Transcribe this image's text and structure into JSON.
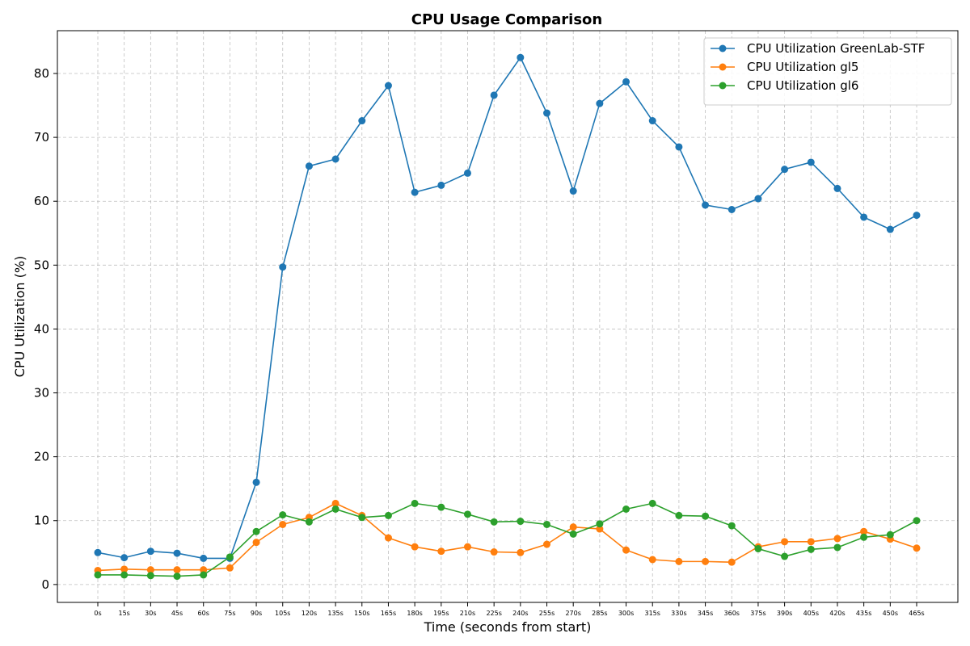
{
  "chart_data": {
    "type": "line",
    "title": "CPU Usage Comparison",
    "xlabel": "Time (seconds from start)",
    "ylabel": "CPU Utilization (%)",
    "categories": [
      "0s",
      "15s",
      "30s",
      "45s",
      "60s",
      "75s",
      "90s",
      "105s",
      "120s",
      "135s",
      "150s",
      "165s",
      "180s",
      "195s",
      "210s",
      "225s",
      "240s",
      "255s",
      "270s",
      "285s",
      "300s",
      "315s",
      "330s",
      "345s",
      "360s",
      "375s",
      "390s",
      "405s",
      "420s",
      "435s",
      "450s",
      "465s"
    ],
    "ylim": [
      -2.8,
      86.7
    ],
    "yticks": [
      0,
      10,
      20,
      30,
      40,
      50,
      60,
      70,
      80
    ],
    "grid": true,
    "legend_position": "top-right",
    "series": [
      {
        "name": "CPU Utilization GreenLab-STF",
        "color": "#1f77b4",
        "values": [
          5.0,
          4.2,
          5.2,
          4.9,
          4.1,
          4.1,
          16.0,
          49.7,
          65.5,
          66.6,
          72.6,
          78.1,
          61.4,
          62.5,
          64.4,
          76.6,
          82.5,
          73.8,
          61.6,
          75.3,
          78.7,
          72.6,
          68.5,
          59.4,
          58.7,
          60.4,
          65.0,
          66.1,
          62.0,
          57.5,
          55.6,
          57.8
        ]
      },
      {
        "name": "CPU Utilization gl5",
        "color": "#ff7f0e",
        "values": [
          2.2,
          2.4,
          2.3,
          2.3,
          2.3,
          2.6,
          6.6,
          9.4,
          10.5,
          12.7,
          10.8,
          7.3,
          5.9,
          5.2,
          5.9,
          5.1,
          5.0,
          6.3,
          9.0,
          8.7,
          5.4,
          3.9,
          3.6,
          3.6,
          3.5,
          5.9,
          6.7,
          6.7,
          7.2,
          8.3,
          7.1,
          5.7
        ]
      },
      {
        "name": "CPU Utilization gl6",
        "color": "#2ca02c",
        "values": [
          1.5,
          1.5,
          1.4,
          1.3,
          1.5,
          4.3,
          8.3,
          10.9,
          9.8,
          11.8,
          10.5,
          10.8,
          12.7,
          12.1,
          11.0,
          9.8,
          9.9,
          9.4,
          7.9,
          9.5,
          11.8,
          12.7,
          10.8,
          10.7,
          9.2,
          5.6,
          4.4,
          5.5,
          5.8,
          7.4,
          7.8,
          10.0
        ]
      }
    ]
  }
}
